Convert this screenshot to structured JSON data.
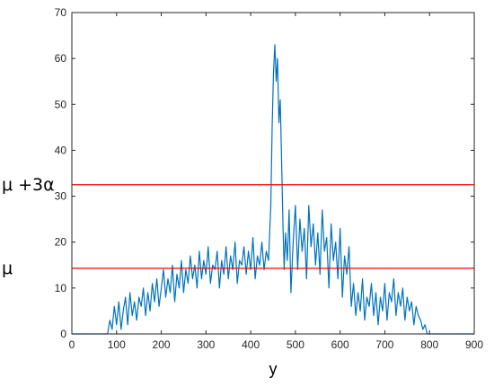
{
  "chart_data": {
    "type": "line",
    "title": "",
    "xlabel": "y",
    "ylabel": "",
    "xlim": [
      0,
      900
    ],
    "ylim": [
      0,
      70
    ],
    "xticks": [
      0,
      100,
      200,
      300,
      400,
      500,
      600,
      700,
      800,
      900
    ],
    "yticks": [
      0,
      10,
      20,
      30,
      40,
      50,
      60,
      70
    ],
    "grid": false,
    "series": [
      {
        "color": "#0072BD",
        "x": [
          0,
          80,
          85,
          90,
          95,
          100,
          105,
          110,
          115,
          120,
          125,
          130,
          135,
          140,
          145,
          150,
          155,
          160,
          165,
          170,
          175,
          180,
          185,
          190,
          195,
          200,
          205,
          210,
          215,
          220,
          225,
          230,
          235,
          240,
          245,
          250,
          255,
          260,
          265,
          270,
          275,
          280,
          285,
          290,
          295,
          300,
          305,
          310,
          315,
          320,
          325,
          330,
          335,
          340,
          345,
          350,
          355,
          360,
          365,
          370,
          375,
          380,
          385,
          390,
          395,
          400,
          405,
          410,
          415,
          420,
          425,
          430,
          435,
          440,
          445,
          448,
          451,
          454,
          457,
          460,
          463,
          466,
          469,
          472,
          475,
          478,
          482,
          486,
          490,
          495,
          500,
          505,
          510,
          515,
          520,
          525,
          530,
          535,
          540,
          545,
          550,
          555,
          560,
          565,
          570,
          575,
          580,
          585,
          590,
          595,
          600,
          605,
          610,
          615,
          620,
          625,
          630,
          635,
          640,
          645,
          650,
          655,
          660,
          665,
          670,
          675,
          680,
          685,
          690,
          695,
          700,
          705,
          710,
          715,
          720,
          725,
          730,
          735,
          740,
          745,
          750,
          755,
          760,
          765,
          770,
          775,
          780,
          785,
          790,
          795,
          800,
          900
        ],
        "y": [
          0,
          0,
          3,
          1,
          6,
          2,
          7,
          1,
          5,
          8,
          2,
          9,
          4,
          7,
          3,
          8,
          6,
          10,
          4,
          9,
          5,
          11,
          7,
          12,
          6,
          10,
          14,
          8,
          12,
          9,
          15,
          7,
          13,
          10,
          16,
          9,
          14,
          11,
          17,
          12,
          15,
          10,
          18,
          12,
          16,
          13,
          19,
          11,
          15,
          14,
          18,
          10,
          16,
          13,
          19,
          12,
          17,
          14,
          20,
          11,
          16,
          15,
          19,
          13,
          18,
          14,
          21,
          12,
          17,
          15,
          20,
          14,
          18,
          16,
          28,
          45,
          57,
          63,
          55,
          60,
          46,
          51,
          38,
          24,
          14,
          22,
          16,
          27,
          9,
          20,
          28,
          14,
          25,
          18,
          23,
          12,
          28,
          19,
          24,
          15,
          22,
          13,
          27,
          18,
          21,
          10,
          24,
          16,
          20,
          12,
          23,
          8,
          17,
          13,
          19,
          6,
          11,
          4,
          9,
          5,
          12,
          3,
          8,
          6,
          11,
          4,
          9,
          2,
          8,
          5,
          11,
          3,
          9,
          7,
          12,
          4,
          9,
          6,
          10,
          3,
          8,
          5,
          7,
          2,
          6,
          4,
          3,
          1,
          2,
          0,
          0,
          0
        ]
      }
    ],
    "reference_lines": [
      {
        "label": "μ +3α",
        "y": 32.5,
        "color": "#FF0000"
      },
      {
        "label": "μ",
        "y": 14.3,
        "color": "#FF0000"
      }
    ]
  }
}
